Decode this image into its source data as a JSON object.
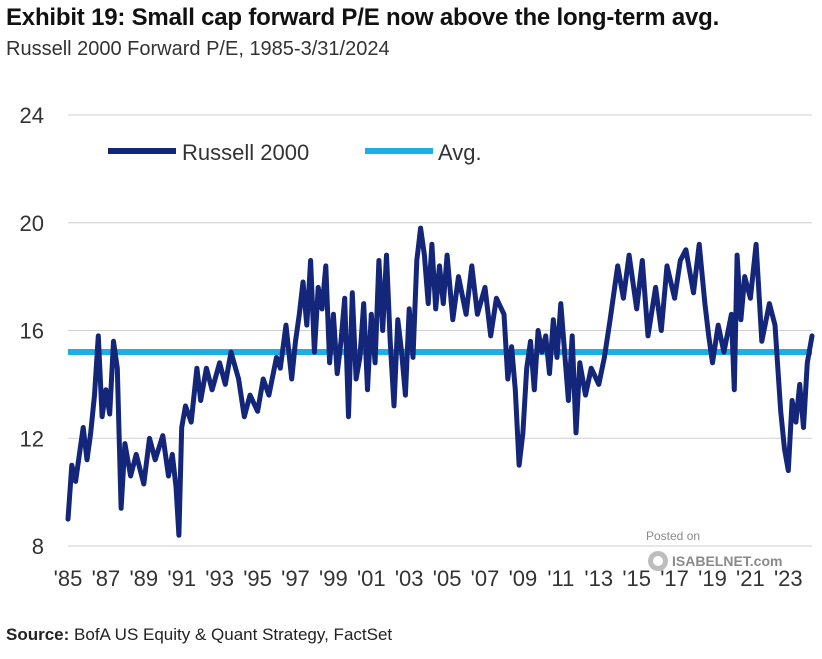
{
  "title": "Exhibit 19: Small cap forward P/E now above the long-term avg.",
  "subtitle": "Russell 2000 Forward P/E, 1985-3/31/2024",
  "source_label": "Source:",
  "source_text": " BofA US Equity & Quant Strategy, FactSet",
  "watermark": {
    "line1": "Posted on",
    "line2": "ISABELNET.com"
  },
  "colors": {
    "series": "#14267a",
    "avg": "#1ab0e6",
    "grid": "#d0d0d0",
    "axis": "#cfcfcf"
  },
  "chart_data": {
    "type": "line",
    "title": "Exhibit 19: Small cap forward P/E now above the long-term avg.",
    "subtitle": "Russell 2000 Forward P/E, 1985-3/31/2024",
    "xlabel": "",
    "ylabel": "",
    "xlim": [
      1985,
      2024.25
    ],
    "ylim": [
      8,
      24
    ],
    "yticks": [
      8,
      12,
      16,
      20,
      24
    ],
    "xtick_labels": [
      "'85",
      "'87",
      "'89",
      "'91",
      "'93",
      "'95",
      "'97",
      "'99",
      "'01",
      "'03",
      "'05",
      "'07",
      "'09",
      "'11",
      "'13",
      "'15",
      "'17",
      "'19",
      "'21",
      "'23"
    ],
    "xtick_years": [
      1985,
      1987,
      1989,
      1991,
      1993,
      1995,
      1997,
      1999,
      2001,
      2003,
      2005,
      2007,
      2009,
      2011,
      2013,
      2015,
      2017,
      2019,
      2021,
      2023
    ],
    "legend": {
      "position": "top-left",
      "entries": [
        "Russell 2000",
        "Avg."
      ]
    },
    "grid": "horizontal",
    "average": 15.2,
    "series": [
      {
        "name": "Russell 2000",
        "x": [
          1985.0,
          1985.2,
          1985.4,
          1985.6,
          1985.8,
          1986.0,
          1986.2,
          1986.4,
          1986.6,
          1986.8,
          1987.0,
          1987.2,
          1987.4,
          1987.6,
          1987.8,
          1988.0,
          1988.3,
          1988.6,
          1989.0,
          1989.3,
          1989.6,
          1990.0,
          1990.3,
          1990.5,
          1990.7,
          1990.85,
          1991.0,
          1991.2,
          1991.5,
          1991.8,
          1992.0,
          1992.3,
          1992.6,
          1993.0,
          1993.3,
          1993.6,
          1994.0,
          1994.3,
          1994.6,
          1995.0,
          1995.3,
          1995.6,
          1996.0,
          1996.2,
          1996.5,
          1996.8,
          1997.0,
          1997.2,
          1997.4,
          1997.6,
          1997.8,
          1998.0,
          1998.2,
          1998.4,
          1998.6,
          1998.8,
          1999.0,
          1999.2,
          1999.4,
          1999.6,
          1999.8,
          2000.0,
          2000.2,
          2000.4,
          2000.6,
          2000.8,
          2001.0,
          2001.2,
          2001.4,
          2001.6,
          2001.8,
          2002.0,
          2002.2,
          2002.4,
          2002.6,
          2002.8,
          2003.0,
          2003.2,
          2003.4,
          2003.6,
          2003.8,
          2004.0,
          2004.2,
          2004.4,
          2004.6,
          2004.8,
          2005.0,
          2005.3,
          2005.6,
          2006.0,
          2006.3,
          2006.6,
          2007.0,
          2007.3,
          2007.6,
          2008.0,
          2008.2,
          2008.4,
          2008.6,
          2008.8,
          2009.0,
          2009.2,
          2009.4,
          2009.6,
          2009.8,
          2010.0,
          2010.2,
          2010.4,
          2010.6,
          2010.8,
          2011.0,
          2011.2,
          2011.4,
          2011.6,
          2011.8,
          2012.0,
          2012.3,
          2012.6,
          2013.0,
          2013.3,
          2013.6,
          2014.0,
          2014.3,
          2014.6,
          2015.0,
          2015.3,
          2015.6,
          2016.0,
          2016.3,
          2016.6,
          2017.0,
          2017.3,
          2017.6,
          2018.0,
          2018.3,
          2018.6,
          2018.8,
          2019.0,
          2019.3,
          2019.6,
          2020.0,
          2020.15,
          2020.3,
          2020.5,
          2020.7,
          2021.0,
          2021.3,
          2021.6,
          2022.0,
          2022.3,
          2022.6,
          2022.8,
          2023.0,
          2023.2,
          2023.4,
          2023.6,
          2023.8,
          2024.0,
          2024.25
        ],
        "values": [
          9.0,
          11.0,
          10.4,
          11.4,
          12.4,
          11.2,
          12.2,
          13.6,
          15.8,
          12.8,
          13.8,
          12.9,
          15.6,
          14.6,
          9.4,
          11.8,
          10.6,
          11.4,
          10.3,
          12.0,
          11.2,
          12.1,
          10.6,
          11.4,
          10.2,
          8.4,
          12.4,
          13.2,
          12.6,
          14.6,
          13.4,
          14.6,
          13.8,
          14.8,
          14.0,
          15.2,
          14.2,
          12.8,
          13.6,
          13.0,
          14.2,
          13.6,
          15.0,
          14.6,
          16.2,
          14.2,
          15.6,
          16.6,
          17.8,
          16.2,
          18.6,
          15.2,
          17.6,
          16.8,
          18.4,
          14.8,
          16.6,
          14.4,
          15.6,
          17.2,
          12.8,
          17.4,
          14.2,
          15.0,
          17.0,
          13.8,
          16.6,
          14.8,
          18.6,
          16.0,
          18.8,
          15.6,
          13.2,
          16.4,
          15.2,
          13.6,
          16.8,
          15.0,
          18.6,
          19.8,
          18.8,
          17.0,
          19.2,
          16.8,
          18.4,
          17.0,
          18.8,
          16.4,
          18.0,
          16.6,
          18.4,
          16.6,
          17.6,
          15.8,
          17.2,
          16.6,
          14.2,
          15.4,
          13.8,
          11.0,
          12.2,
          14.6,
          15.6,
          13.8,
          16.0,
          15.2,
          15.8,
          14.4,
          16.4,
          15.0,
          17.0,
          15.2,
          13.4,
          15.8,
          12.2,
          14.8,
          13.6,
          14.6,
          14.0,
          15.0,
          16.4,
          18.4,
          17.2,
          18.8,
          16.8,
          18.6,
          15.8,
          17.6,
          16.0,
          18.4,
          17.2,
          18.6,
          19.0,
          17.4,
          19.2,
          17.0,
          15.8,
          14.8,
          16.2,
          15.2,
          16.6,
          13.8,
          18.8,
          16.4,
          18.0,
          17.2,
          19.2,
          15.6,
          17.0,
          16.2,
          13.0,
          11.6,
          10.8,
          13.4,
          12.6,
          14.0,
          12.4,
          14.8,
          15.8
        ]
      }
    ]
  }
}
